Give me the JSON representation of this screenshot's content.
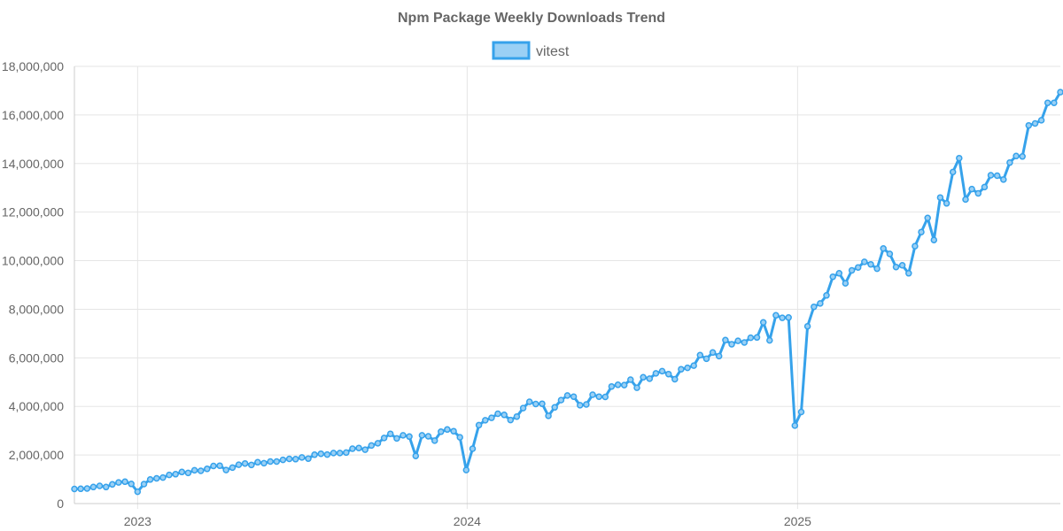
{
  "chart_data": {
    "type": "line",
    "title": "Npm Package Weekly Downloads Trend",
    "xlabel": "",
    "ylabel": "",
    "ylim": [
      0,
      18000000
    ],
    "yticks": [
      "0",
      "2,000,000",
      "4,000,000",
      "6,000,000",
      "8,000,000",
      "10,000,000",
      "12,000,000",
      "14,000,000",
      "16,000,000",
      "18,000,000"
    ],
    "xticks": [
      "2023",
      "2024",
      "2025"
    ],
    "xlim": [
      "2022-10-23",
      "2025-10-19"
    ],
    "grid": true,
    "legend_position": "top-center",
    "series": [
      {
        "name": "vitest",
        "color": "#36a2eb",
        "fill_color": "#9ad0f5",
        "points": [
          [
            "2022-10-23",
            600000
          ],
          [
            "2022-10-30",
            610000
          ],
          [
            "2022-11-06",
            620000
          ],
          [
            "2022-11-13",
            680000
          ],
          [
            "2022-11-20",
            730000
          ],
          [
            "2022-11-27",
            680000
          ],
          [
            "2022-12-04",
            790000
          ],
          [
            "2022-12-11",
            870000
          ],
          [
            "2022-12-18",
            900000
          ],
          [
            "2022-12-25",
            810000
          ],
          [
            "2023-01-01",
            490000
          ],
          [
            "2023-01-08",
            800000
          ],
          [
            "2023-01-15",
            990000
          ],
          [
            "2023-01-22",
            1040000
          ],
          [
            "2023-01-29",
            1070000
          ],
          [
            "2023-02-05",
            1180000
          ],
          [
            "2023-02-12",
            1210000
          ],
          [
            "2023-02-19",
            1300000
          ],
          [
            "2023-02-26",
            1260000
          ],
          [
            "2023-03-05",
            1370000
          ],
          [
            "2023-03-12",
            1350000
          ],
          [
            "2023-03-19",
            1430000
          ],
          [
            "2023-03-26",
            1550000
          ],
          [
            "2023-04-02",
            1560000
          ],
          [
            "2023-04-09",
            1380000
          ],
          [
            "2023-04-16",
            1480000
          ],
          [
            "2023-04-23",
            1600000
          ],
          [
            "2023-04-30",
            1650000
          ],
          [
            "2023-05-07",
            1590000
          ],
          [
            "2023-05-14",
            1700000
          ],
          [
            "2023-05-21",
            1660000
          ],
          [
            "2023-05-28",
            1730000
          ],
          [
            "2023-06-04",
            1730000
          ],
          [
            "2023-06-11",
            1800000
          ],
          [
            "2023-06-18",
            1840000
          ],
          [
            "2023-06-25",
            1830000
          ],
          [
            "2023-07-02",
            1900000
          ],
          [
            "2023-07-09",
            1850000
          ],
          [
            "2023-07-16",
            2010000
          ],
          [
            "2023-07-23",
            2050000
          ],
          [
            "2023-07-30",
            2020000
          ],
          [
            "2023-08-06",
            2080000
          ],
          [
            "2023-08-13",
            2080000
          ],
          [
            "2023-08-20",
            2100000
          ],
          [
            "2023-08-27",
            2260000
          ],
          [
            "2023-09-03",
            2290000
          ],
          [
            "2023-09-10",
            2220000
          ],
          [
            "2023-09-17",
            2390000
          ],
          [
            "2023-09-24",
            2480000
          ],
          [
            "2023-10-01",
            2700000
          ],
          [
            "2023-10-08",
            2870000
          ],
          [
            "2023-10-15",
            2680000
          ],
          [
            "2023-10-22",
            2810000
          ],
          [
            "2023-10-29",
            2760000
          ],
          [
            "2023-11-05",
            1960000
          ],
          [
            "2023-11-12",
            2810000
          ],
          [
            "2023-11-19",
            2770000
          ],
          [
            "2023-11-26",
            2590000
          ],
          [
            "2023-12-03",
            2960000
          ],
          [
            "2023-12-10",
            3050000
          ],
          [
            "2023-12-17",
            2980000
          ],
          [
            "2023-12-24",
            2730000
          ],
          [
            "2023-12-31",
            1380000
          ],
          [
            "2024-01-07",
            2260000
          ],
          [
            "2024-01-14",
            3230000
          ],
          [
            "2024-01-21",
            3430000
          ],
          [
            "2024-01-28",
            3530000
          ],
          [
            "2024-02-04",
            3700000
          ],
          [
            "2024-02-11",
            3650000
          ],
          [
            "2024-02-18",
            3440000
          ],
          [
            "2024-02-25",
            3580000
          ],
          [
            "2024-03-03",
            3930000
          ],
          [
            "2024-03-10",
            4190000
          ],
          [
            "2024-03-17",
            4100000
          ],
          [
            "2024-03-24",
            4110000
          ],
          [
            "2024-03-31",
            3610000
          ],
          [
            "2024-04-07",
            3960000
          ],
          [
            "2024-04-14",
            4260000
          ],
          [
            "2024-04-21",
            4450000
          ],
          [
            "2024-04-28",
            4400000
          ],
          [
            "2024-05-05",
            4050000
          ],
          [
            "2024-05-12",
            4080000
          ],
          [
            "2024-05-19",
            4480000
          ],
          [
            "2024-05-26",
            4400000
          ],
          [
            "2024-06-02",
            4390000
          ],
          [
            "2024-06-09",
            4820000
          ],
          [
            "2024-06-16",
            4890000
          ],
          [
            "2024-06-23",
            4880000
          ],
          [
            "2024-06-30",
            5100000
          ],
          [
            "2024-07-07",
            4770000
          ],
          [
            "2024-07-14",
            5200000
          ],
          [
            "2024-07-21",
            5140000
          ],
          [
            "2024-07-28",
            5360000
          ],
          [
            "2024-08-04",
            5450000
          ],
          [
            "2024-08-11",
            5330000
          ],
          [
            "2024-08-18",
            5120000
          ],
          [
            "2024-08-25",
            5530000
          ],
          [
            "2024-09-01",
            5590000
          ],
          [
            "2024-09-08",
            5680000
          ],
          [
            "2024-09-15",
            6110000
          ],
          [
            "2024-09-22",
            5960000
          ],
          [
            "2024-09-29",
            6220000
          ],
          [
            "2024-10-06",
            6070000
          ],
          [
            "2024-10-13",
            6730000
          ],
          [
            "2024-10-20",
            6560000
          ],
          [
            "2024-10-27",
            6700000
          ],
          [
            "2024-11-03",
            6630000
          ],
          [
            "2024-11-10",
            6830000
          ],
          [
            "2024-11-17",
            6840000
          ],
          [
            "2024-11-24",
            7460000
          ],
          [
            "2024-12-01",
            6720000
          ],
          [
            "2024-12-08",
            7750000
          ],
          [
            "2024-12-15",
            7650000
          ],
          [
            "2024-12-22",
            7660000
          ],
          [
            "2024-12-29",
            3210000
          ],
          [
            "2025-01-05",
            3770000
          ],
          [
            "2025-01-12",
            7300000
          ],
          [
            "2025-01-19",
            8100000
          ],
          [
            "2025-01-26",
            8240000
          ],
          [
            "2025-02-02",
            8570000
          ],
          [
            "2025-02-09",
            9340000
          ],
          [
            "2025-02-16",
            9480000
          ],
          [
            "2025-02-23",
            9070000
          ],
          [
            "2025-03-02",
            9600000
          ],
          [
            "2025-03-09",
            9720000
          ],
          [
            "2025-03-16",
            9950000
          ],
          [
            "2025-03-23",
            9850000
          ],
          [
            "2025-03-30",
            9670000
          ],
          [
            "2025-04-06",
            10500000
          ],
          [
            "2025-04-13",
            10280000
          ],
          [
            "2025-04-20",
            9740000
          ],
          [
            "2025-04-27",
            9810000
          ],
          [
            "2025-05-04",
            9480000
          ],
          [
            "2025-05-11",
            10600000
          ],
          [
            "2025-05-18",
            11180000
          ],
          [
            "2025-05-25",
            11760000
          ],
          [
            "2025-06-01",
            10850000
          ],
          [
            "2025-06-08",
            12600000
          ],
          [
            "2025-06-15",
            12360000
          ],
          [
            "2025-06-22",
            13650000
          ],
          [
            "2025-06-29",
            14220000
          ],
          [
            "2025-07-06",
            12520000
          ],
          [
            "2025-07-13",
            12950000
          ],
          [
            "2025-07-20",
            12770000
          ],
          [
            "2025-07-27",
            13030000
          ],
          [
            "2025-08-03",
            13520000
          ],
          [
            "2025-08-10",
            13500000
          ],
          [
            "2025-08-17",
            13340000
          ],
          [
            "2025-08-24",
            14040000
          ],
          [
            "2025-08-31",
            14310000
          ],
          [
            "2025-09-07",
            14290000
          ],
          [
            "2025-09-14",
            15570000
          ],
          [
            "2025-09-21",
            15650000
          ],
          [
            "2025-09-28",
            15780000
          ],
          [
            "2025-10-05",
            16500000
          ],
          [
            "2025-10-12",
            16500000
          ],
          [
            "2025-10-19",
            16940000
          ]
        ]
      }
    ]
  }
}
